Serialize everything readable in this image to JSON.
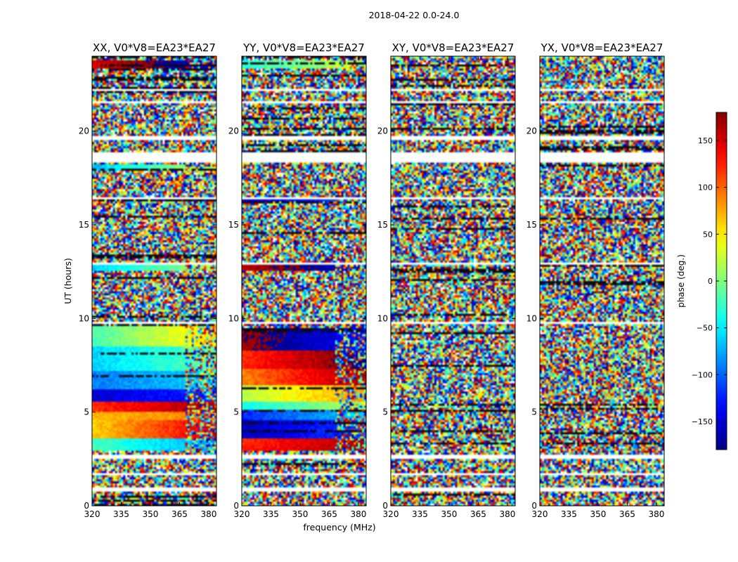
{
  "figure": {
    "suptitle": "2018-04-22 0.0-24.0"
  },
  "chart_data": {
    "type": "heatmap",
    "xlabel": "frequency (MHz)",
    "ylabel": "UT (hours)",
    "xlim": [
      320,
      384
    ],
    "ylim": [
      0,
      24
    ],
    "x_ticks": [
      320,
      335,
      350,
      365,
      380
    ],
    "y_ticks": [
      0,
      5,
      10,
      15,
      20
    ],
    "colorbar": {
      "label": "phase (deg.)",
      "range": [
        -180,
        180
      ],
      "ticks": [
        150,
        100,
        50,
        0,
        -50,
        -100,
        -150
      ],
      "tick_labels": [
        "150",
        "100",
        "50",
        "0",
        "−50",
        "−100",
        "−150"
      ],
      "colormap": "jet"
    },
    "flagged_bands_ut": [
      [
        0.8,
        0.95
      ],
      [
        1.6,
        1.7
      ],
      [
        2.55,
        2.75
      ],
      [
        9.7,
        9.8
      ],
      [
        12.9,
        13.0
      ],
      [
        16.4,
        16.5
      ],
      [
        18.3,
        18.9
      ],
      [
        19.5,
        19.7
      ],
      [
        21.5,
        21.6
      ],
      [
        22.1,
        22.2
      ]
    ],
    "panels": [
      {
        "title": "XX, V0*V8=EA23*EA27",
        "coherent_segments": [
          {
            "ut": [
              3.0,
              3.6
            ],
            "phase_low_freq": -20,
            "phase_high_freq": -80,
            "note": "cyan/green"
          },
          {
            "ut": [
              3.6,
              4.6
            ],
            "phase_low_freq": 60,
            "phase_high_freq": 150,
            "note": "yellow to red"
          },
          {
            "ut": [
              4.6,
              5.0
            ],
            "phase_low_freq": 70,
            "phase_high_freq": 90,
            "note": "yellow/orange"
          },
          {
            "ut": [
              5.0,
              5.6
            ],
            "phase_low_freq": 120,
            "phase_high_freq": 170,
            "note": "red"
          },
          {
            "ut": [
              5.6,
              6.2
            ],
            "phase_low_freq": -150,
            "phase_high_freq": -120,
            "note": "blue"
          },
          {
            "ut": [
              6.2,
              7.2
            ],
            "phase_low_freq": -90,
            "phase_high_freq": -60,
            "note": "blue/cyan"
          },
          {
            "ut": [
              7.2,
              8.5
            ],
            "phase_low_freq": -60,
            "phase_high_freq": -10,
            "note": "cyan to green"
          },
          {
            "ut": [
              8.5,
              9.6
            ],
            "phase_low_freq": -20,
            "phase_high_freq": 60,
            "note": "green to yellow"
          },
          {
            "ut": [
              12.6,
              12.9
            ],
            "phase_low_freq": -60,
            "phase_high_freq": 20,
            "note": "cyan band"
          },
          {
            "ut": [
              17.9,
              18.2
            ],
            "phase_low_freq": -70,
            "phase_high_freq": 30,
            "note": "cyan/green"
          },
          {
            "ut": [
              23.3,
              23.8
            ],
            "phase_low_freq": 150,
            "phase_high_freq": -150,
            "note": "red/blue"
          }
        ]
      },
      {
        "title": "YY, V0*V8=EA23*EA27",
        "coherent_segments": [
          {
            "ut": [
              3.0,
              3.6
            ],
            "phase_low_freq": 120,
            "phase_high_freq": 170,
            "note": "red/orange"
          },
          {
            "ut": [
              3.6,
              4.6
            ],
            "phase_low_freq": -160,
            "phase_high_freq": -110,
            "note": "blue"
          },
          {
            "ut": [
              4.6,
              5.1
            ],
            "phase_low_freq": -120,
            "phase_high_freq": -60,
            "note": "blue/cyan"
          },
          {
            "ut": [
              5.1,
              5.6
            ],
            "phase_low_freq": -40,
            "phase_high_freq": 20,
            "note": "cyan/green"
          },
          {
            "ut": [
              5.6,
              6.4
            ],
            "phase_low_freq": 20,
            "phase_high_freq": 80,
            "note": "green/yellow"
          },
          {
            "ut": [
              6.4,
              7.3
            ],
            "phase_low_freq": 90,
            "phase_high_freq": 170,
            "note": "orange/red"
          },
          {
            "ut": [
              7.3,
              8.3
            ],
            "phase_low_freq": 120,
            "phase_high_freq": -170,
            "note": "red"
          },
          {
            "ut": [
              8.3,
              9.5
            ],
            "phase_low_freq": 170,
            "phase_high_freq": -130,
            "note": "red/blue"
          },
          {
            "ut": [
              12.5,
              12.9
            ],
            "phase_low_freq": 160,
            "phase_high_freq": -150,
            "note": "red/blue band"
          },
          {
            "ut": [
              16.3,
              16.5
            ],
            "phase_low_freq": -150,
            "phase_high_freq": -100,
            "note": "blue"
          },
          {
            "ut": [
              23.3,
              23.8
            ],
            "phase_low_freq": -30,
            "phase_high_freq": 30,
            "note": "cyan/green"
          }
        ]
      },
      {
        "title": "XY, V0*V8=EA23*EA27",
        "coherent_segments": []
      },
      {
        "title": "YX, V0*V8=EA23*EA27",
        "coherent_segments": []
      }
    ]
  }
}
